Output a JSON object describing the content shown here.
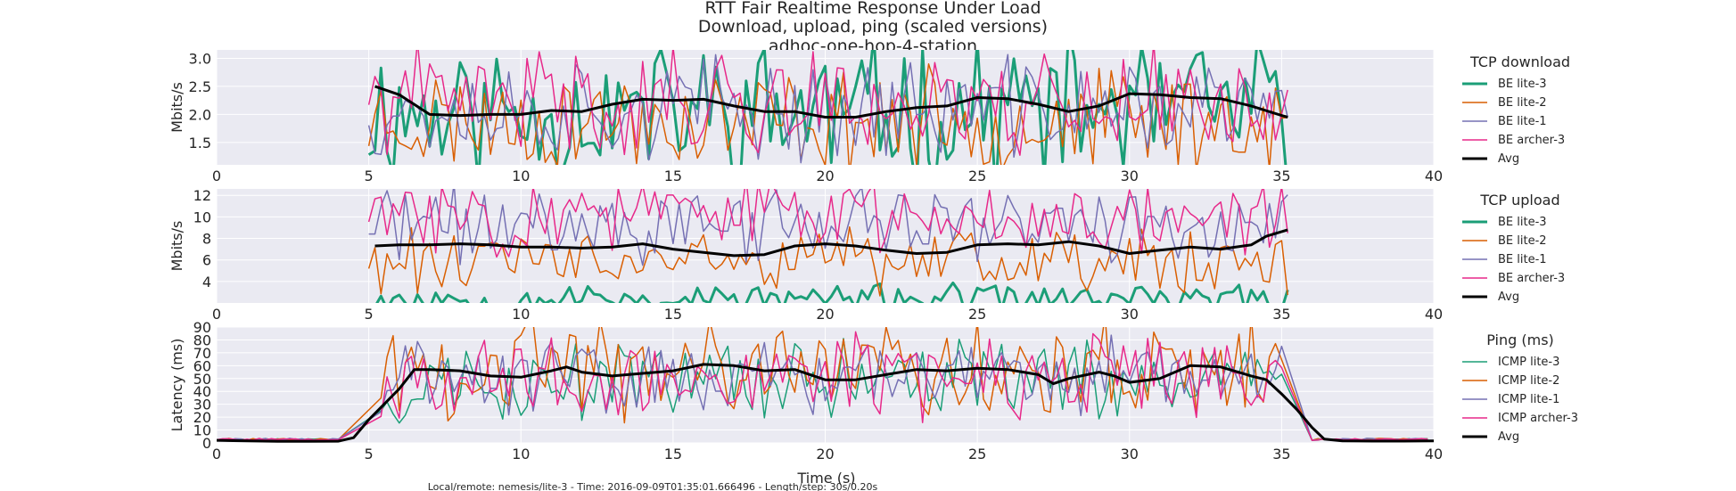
{
  "figure": {
    "title_lines": [
      "RTT Fair Realtime Response Under Load",
      "Download, upload, ping (scaled versions)",
      "adhoc-one-hop-4-station"
    ],
    "xlabel": "Time (s)",
    "footer": "Local/remote: nemesis/lite-3 - Time: 2016-09-09T01:35:01.666496 - Length/step: 30s/0.20s",
    "background": "#eaeaf2",
    "grid_color": "#ffffff"
  },
  "chart_data": [
    {
      "type": "line",
      "id": "download",
      "ylabel": "Mbits/s",
      "xlim": [
        0,
        40
      ],
      "ylim": [
        1.1,
        3.15
      ],
      "xticks": [
        0,
        5,
        10,
        15,
        20,
        25,
        30,
        35,
        40
      ],
      "yticks": [
        1.5,
        2.0,
        2.5,
        3.0
      ],
      "ytick_labels": [
        "1.5",
        "2.0",
        "2.5",
        "3.0"
      ],
      "legend_title": "TCP download",
      "legend": [
        "BE lite-3",
        "BE lite-2",
        "BE lite-1",
        "BE archer-3",
        "Avg"
      ],
      "series": [
        {
          "name": "BE lite-3",
          "color": "#1b9e77",
          "width": 3,
          "x_start": 5.0,
          "x_end": 35.2,
          "step": 0.2,
          "mean": 2.05,
          "amplitude": 1.1,
          "seed": 11
        },
        {
          "name": "BE lite-2",
          "color": "#d95f02",
          "width": 1.5,
          "x_start": 5.0,
          "x_end": 35.2,
          "step": 0.2,
          "mean": 1.9,
          "amplitude": 0.75,
          "seed": 23
        },
        {
          "name": "BE lite-1",
          "color": "#7570b3",
          "width": 1.5,
          "x_start": 5.0,
          "x_end": 35.2,
          "step": 0.2,
          "mean": 2.1,
          "amplitude": 0.75,
          "seed": 37
        },
        {
          "name": "BE archer-3",
          "color": "#e7298a",
          "width": 1.5,
          "x_start": 5.0,
          "x_end": 35.2,
          "step": 0.2,
          "mean": 2.25,
          "amplitude": 0.8,
          "seed": 41
        },
        {
          "name": "Avg",
          "color": "#000000",
          "width": 3,
          "points": [
            [
              5.2,
              2.5
            ],
            [
              6,
              2.35
            ],
            [
              7,
              2.0
            ],
            [
              8,
              1.98
            ],
            [
              9,
              2.0
            ],
            [
              10,
              2.0
            ],
            [
              11,
              2.07
            ],
            [
              12,
              2.05
            ],
            [
              13,
              2.18
            ],
            [
              14,
              2.27
            ],
            [
              15,
              2.25
            ],
            [
              16,
              2.27
            ],
            [
              17,
              2.15
            ],
            [
              18,
              2.05
            ],
            [
              19,
              2.05
            ],
            [
              20,
              1.95
            ],
            [
              21,
              1.95
            ],
            [
              22,
              2.05
            ],
            [
              23,
              2.12
            ],
            [
              24,
              2.15
            ],
            [
              25,
              2.3
            ],
            [
              26,
              2.28
            ],
            [
              27,
              2.18
            ],
            [
              28,
              2.05
            ],
            [
              29,
              2.15
            ],
            [
              30,
              2.37
            ],
            [
              31,
              2.35
            ],
            [
              32,
              2.3
            ],
            [
              33,
              2.28
            ],
            [
              34,
              2.15
            ],
            [
              35,
              1.98
            ],
            [
              35.2,
              1.95
            ]
          ]
        }
      ]
    },
    {
      "type": "line",
      "id": "upload",
      "ylabel": "Mbits/s",
      "xlim": [
        0,
        40
      ],
      "ylim": [
        2.0,
        12.6
      ],
      "xticks": [
        0,
        5,
        10,
        15,
        20,
        25,
        30,
        35,
        40
      ],
      "yticks": [
        4,
        6,
        8,
        10,
        12
      ],
      "ytick_labels": [
        "4",
        "6",
        "8",
        "10",
        "12"
      ],
      "legend_title": "TCP upload",
      "legend": [
        "BE lite-3",
        "BE lite-2",
        "BE lite-1",
        "BE archer-3",
        "Avg"
      ],
      "series": [
        {
          "name": "BE lite-3",
          "color": "#1b9e77",
          "width": 3,
          "x_start": 5.0,
          "x_end": 35.2,
          "step": 0.2,
          "mean": 2.4,
          "amplitude": 1.1,
          "seed": 53
        },
        {
          "name": "BE lite-2",
          "color": "#d95f02",
          "width": 1.5,
          "x_start": 5.0,
          "x_end": 35.2,
          "step": 0.2,
          "mean": 5.8,
          "amplitude": 2.6,
          "seed": 61
        },
        {
          "name": "BE lite-1",
          "color": "#7570b3",
          "width": 1.5,
          "x_start": 5.0,
          "x_end": 35.2,
          "step": 0.2,
          "mean": 9.3,
          "amplitude": 3.0,
          "seed": 71
        },
        {
          "name": "BE archer-3",
          "color": "#e7298a",
          "width": 1.5,
          "x_start": 5.0,
          "x_end": 35.2,
          "step": 0.2,
          "mean": 10.2,
          "amplitude": 3.0,
          "seed": 83
        },
        {
          "name": "Avg",
          "color": "#000000",
          "width": 3,
          "points": [
            [
              5.2,
              7.3
            ],
            [
              6,
              7.4
            ],
            [
              7,
              7.4
            ],
            [
              8,
              7.5
            ],
            [
              9,
              7.4
            ],
            [
              10,
              7.2
            ],
            [
              11,
              7.2
            ],
            [
              12,
              7.1
            ],
            [
              13,
              7.2
            ],
            [
              14,
              7.5
            ],
            [
              15,
              7.0
            ],
            [
              16,
              6.7
            ],
            [
              17,
              6.4
            ],
            [
              18,
              6.5
            ],
            [
              19,
              7.3
            ],
            [
              20,
              7.5
            ],
            [
              21,
              7.3
            ],
            [
              22,
              6.9
            ],
            [
              23,
              6.6
            ],
            [
              24,
              6.7
            ],
            [
              25,
              7.4
            ],
            [
              26,
              7.5
            ],
            [
              27,
              7.4
            ],
            [
              28,
              7.7
            ],
            [
              29,
              7.3
            ],
            [
              30,
              6.6
            ],
            [
              31,
              6.9
            ],
            [
              32,
              7.2
            ],
            [
              33,
              7.0
            ],
            [
              34,
              7.4
            ],
            [
              34.5,
              8.2
            ],
            [
              35.2,
              8.8
            ]
          ]
        }
      ]
    },
    {
      "type": "line",
      "id": "ping",
      "ylabel": "Latency (ms)",
      "xlim": [
        0,
        40
      ],
      "ylim": [
        0,
        90
      ],
      "xticks": [
        0,
        5,
        10,
        15,
        20,
        25,
        30,
        35,
        40
      ],
      "yticks": [
        0,
        10,
        20,
        30,
        40,
        50,
        60,
        70,
        80,
        90
      ],
      "ytick_labels": [
        "0",
        "10",
        "20",
        "30",
        "40",
        "50",
        "60",
        "70",
        "80",
        "90"
      ],
      "legend_title": "Ping (ms)",
      "legend": [
        "ICMP lite-3",
        "ICMP lite-2",
        "ICMP lite-1",
        "ICMP archer-3",
        "Avg"
      ],
      "series": [
        {
          "name": "ICMP lite-3",
          "color": "#1b9e77",
          "width": 1.5,
          "x_start": 5.4,
          "x_end": 35.0,
          "step": 0.2,
          "mean": 48,
          "amplitude": 24,
          "seed": 97,
          "baseline": 2,
          "ramp": [
            4.2,
            5.6,
            35.0,
            36.0
          ]
        },
        {
          "name": "ICMP lite-2",
          "color": "#d95f02",
          "width": 1.5,
          "x_start": 5.4,
          "x_end": 35.0,
          "step": 0.2,
          "mean": 58,
          "amplitude": 32,
          "seed": 101,
          "baseline": 2,
          "ramp": [
            4.2,
            5.6,
            35.0,
            36.0
          ]
        },
        {
          "name": "ICMP lite-1",
          "color": "#7570b3",
          "width": 1.5,
          "x_start": 5.4,
          "x_end": 35.0,
          "step": 0.2,
          "mean": 52,
          "amplitude": 24,
          "seed": 113,
          "baseline": 2,
          "ramp": [
            4.2,
            5.6,
            35.0,
            36.0
          ]
        },
        {
          "name": "ICMP archer-3",
          "color": "#e7298a",
          "width": 1.5,
          "x_start": 5.4,
          "x_end": 35.0,
          "step": 0.2,
          "mean": 50,
          "amplitude": 28,
          "seed": 127,
          "baseline": 2,
          "ramp": [
            4.2,
            5.6,
            35.0,
            36.0
          ]
        },
        {
          "name": "Avg",
          "color": "#000000",
          "width": 3,
          "points": [
            [
              0,
              2
            ],
            [
              1,
              1.5
            ],
            [
              2,
              1.2
            ],
            [
              3,
              1.2
            ],
            [
              4,
              1.3
            ],
            [
              4.5,
              4
            ],
            [
              5,
              18
            ],
            [
              5.5,
              30
            ],
            [
              6,
              42
            ],
            [
              6.5,
              57
            ],
            [
              7,
              57
            ],
            [
              8,
              56
            ],
            [
              9,
              52
            ],
            [
              10,
              51
            ],
            [
              11,
              56
            ],
            [
              11.5,
              59
            ],
            [
              12,
              55
            ],
            [
              13,
              52
            ],
            [
              14,
              54
            ],
            [
              15,
              56
            ],
            [
              16,
              61
            ],
            [
              17,
              60
            ],
            [
              18,
              56
            ],
            [
              19,
              57
            ],
            [
              20,
              49
            ],
            [
              21,
              49
            ],
            [
              22,
              53
            ],
            [
              23,
              57
            ],
            [
              24,
              56
            ],
            [
              25,
              58
            ],
            [
              26,
              57
            ],
            [
              27,
              53
            ],
            [
              27.5,
              46
            ],
            [
              28,
              50
            ],
            [
              29,
              55
            ],
            [
              29.5,
              52
            ],
            [
              30,
              47
            ],
            [
              31,
              50
            ],
            [
              32,
              60
            ],
            [
              33,
              59
            ],
            [
              34,
              52
            ],
            [
              34.5,
              49
            ],
            [
              35,
              38
            ],
            [
              35.5,
              26
            ],
            [
              36,
              12
            ],
            [
              36.4,
              3
            ],
            [
              37,
              1.5
            ],
            [
              38,
              1.4
            ],
            [
              39,
              1.4
            ],
            [
              40,
              1.5
            ]
          ]
        }
      ]
    }
  ]
}
